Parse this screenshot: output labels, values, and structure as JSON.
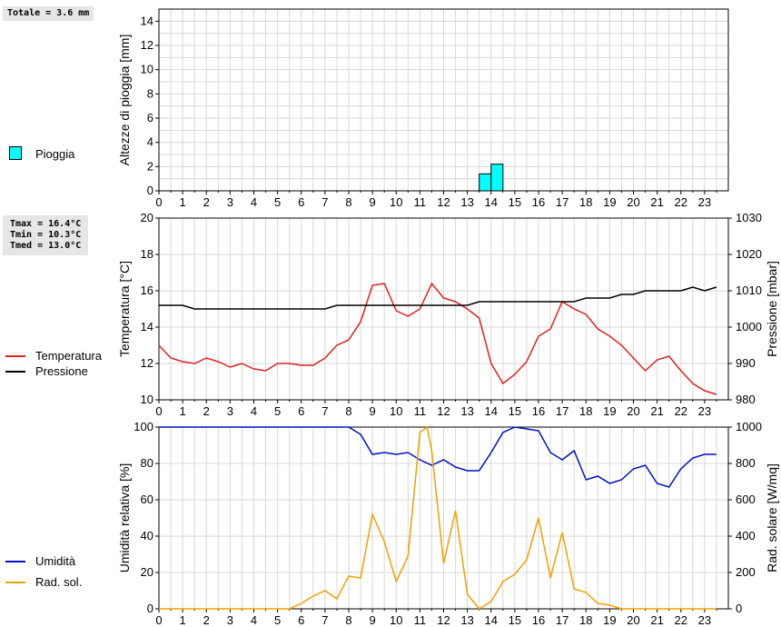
{
  "colors": {
    "rain_fill": "#00ffff",
    "temperature": "#e02020",
    "pressure": "#000000",
    "humidity": "#0010c0",
    "radiation": "#f0a000",
    "grid": "#d8d8d8"
  },
  "summaries": {
    "rain_total": "Totale = 3.6 mm",
    "tmax": "Tmax = 16.4°C",
    "tmin": "Tmin = 10.3°C",
    "tmed": "Tmed = 13.0°C"
  },
  "legends": {
    "rain": "Pioggia",
    "temperature": "Temperatura",
    "pressure": "Pressione",
    "humidity": "Umidità",
    "radiation": "Rad. sol."
  },
  "chart_data": [
    {
      "type": "bar",
      "title": "",
      "xlabel": "",
      "ylabel": "Altezze di pioggia [mm]",
      "x_ticks": [
        "0",
        "1",
        "2",
        "3",
        "4",
        "5",
        "6",
        "7",
        "8",
        "9",
        "10",
        "11",
        "12",
        "13",
        "14",
        "15",
        "16",
        "17",
        "18",
        "19",
        "20",
        "21",
        "22",
        "23"
      ],
      "xlim": [
        0,
        24
      ],
      "ylim": [
        0,
        15
      ],
      "y_ticks": [
        "0",
        "2",
        "4",
        "6",
        "8",
        "10",
        "12",
        "14"
      ],
      "series": [
        {
          "name": "Pioggia",
          "bars": [
            {
              "x0": 13.5,
              "x1": 14.0,
              "value": 1.4
            },
            {
              "x0": 14.0,
              "x1": 14.5,
              "value": 2.2
            }
          ]
        }
      ]
    },
    {
      "type": "line",
      "xlabel": "",
      "ylabel": "Temperatura [°C]",
      "y2label": "Pressione [mbar]",
      "x_ticks": [
        "0",
        "1",
        "2",
        "3",
        "4",
        "5",
        "6",
        "7",
        "8",
        "9",
        "10",
        "11",
        "12",
        "13",
        "14",
        "15",
        "16",
        "17",
        "18",
        "19",
        "20",
        "21",
        "22",
        "23"
      ],
      "xlim": [
        0,
        24
      ],
      "ylim": [
        10,
        20
      ],
      "y_ticks": [
        "10",
        "12",
        "14",
        "16",
        "18",
        "20"
      ],
      "y2lim": [
        980,
        1030
      ],
      "y2_ticks": [
        "980",
        "990",
        "1000",
        "1010",
        "1020",
        "1030"
      ],
      "series": [
        {
          "name": "Temperatura",
          "axis": "left",
          "x": [
            0,
            0.5,
            1,
            1.5,
            2,
            2.5,
            3,
            3.5,
            4,
            4.5,
            5,
            5.5,
            6,
            6.5,
            7,
            7.5,
            8,
            8.5,
            9,
            9.5,
            10,
            10.5,
            11,
            11.5,
            12,
            12.5,
            13,
            13.5,
            14,
            14.5,
            15,
            15.5,
            16,
            16.5,
            17,
            17.5,
            18,
            18.5,
            19,
            19.5,
            20,
            20.5,
            21,
            21.5,
            22,
            22.5,
            23,
            23.5
          ],
          "values": [
            13.0,
            12.3,
            12.1,
            12.0,
            12.3,
            12.1,
            11.8,
            12.0,
            11.7,
            11.6,
            12.0,
            12.0,
            11.9,
            11.9,
            12.3,
            13.0,
            13.3,
            14.3,
            16.3,
            16.4,
            14.9,
            14.6,
            15.0,
            16.4,
            15.6,
            15.4,
            15.0,
            14.5,
            12.0,
            10.9,
            11.4,
            12.1,
            13.5,
            13.9,
            15.4,
            15.0,
            14.7,
            13.9,
            13.5,
            13.0,
            12.3,
            11.6,
            12.2,
            12.4,
            11.6,
            10.9,
            10.5,
            10.3
          ]
        },
        {
          "name": "Pressione",
          "axis": "right",
          "x": [
            0,
            1,
            1.5,
            2,
            7,
            7.5,
            8,
            13,
            13.5,
            14,
            15,
            17,
            17.5,
            18,
            19,
            19.5,
            20,
            20.5,
            21,
            22,
            22.5,
            23,
            23.5
          ],
          "values": [
            1006,
            1006,
            1005,
            1005,
            1005,
            1006,
            1006,
            1006,
            1007,
            1007,
            1007,
            1007,
            1007,
            1008,
            1008,
            1009,
            1009,
            1010,
            1010,
            1010,
            1011,
            1010,
            1011
          ]
        }
      ]
    },
    {
      "type": "line",
      "xlabel": "",
      "ylabel": "Umidità relativa [%]",
      "y2label": "Rad. solare [W/mq]",
      "x_ticks": [
        "0",
        "1",
        "2",
        "3",
        "4",
        "5",
        "6",
        "7",
        "8",
        "9",
        "10",
        "11",
        "12",
        "13",
        "14",
        "15",
        "16",
        "17",
        "18",
        "19",
        "20",
        "21",
        "22",
        "23"
      ],
      "xlim": [
        0,
        24
      ],
      "ylim": [
        0,
        100
      ],
      "y_ticks": [
        "0",
        "20",
        "40",
        "60",
        "80",
        "100"
      ],
      "y2lim": [
        0,
        1000
      ],
      "y2_ticks": [
        "0",
        "200",
        "400",
        "600",
        "800",
        "1000"
      ],
      "series": [
        {
          "name": "Umidità",
          "axis": "left",
          "x": [
            0,
            8,
            8.5,
            9,
            9.5,
            10,
            10.5,
            11,
            11.5,
            12,
            12.5,
            13,
            13.5,
            14,
            14.5,
            15,
            15.5,
            16,
            16.5,
            17,
            17.5,
            18,
            18.5,
            19,
            19.5,
            20,
            20.5,
            21,
            21.5,
            22,
            22.5,
            23,
            23.5
          ],
          "values": [
            100,
            100,
            96,
            85,
            86,
            85,
            86,
            82,
            79,
            82,
            78,
            76,
            76,
            86,
            97,
            100,
            99,
            98,
            86,
            82,
            87,
            71,
            73,
            69,
            71,
            77,
            79,
            69,
            67,
            77,
            83,
            85,
            85
          ]
        },
        {
          "name": "Rad. sol.",
          "axis": "right",
          "x": [
            0,
            5.5,
            6,
            6.5,
            7,
            7.5,
            8,
            8.5,
            9,
            9.5,
            10,
            10.5,
            11,
            11.3,
            11.5,
            12,
            12.5,
            13,
            13.5,
            14,
            14.5,
            15,
            15.5,
            16,
            16.5,
            17,
            17.5,
            18,
            18.5,
            19,
            19.5,
            20,
            23.5
          ],
          "values": [
            0,
            0,
            30,
            70,
            100,
            55,
            180,
            170,
            520,
            370,
            150,
            290,
            970,
            1050,
            870,
            250,
            540,
            80,
            0,
            40,
            150,
            190,
            270,
            500,
            170,
            420,
            110,
            90,
            30,
            20,
            0,
            0,
            0
          ]
        }
      ]
    }
  ]
}
